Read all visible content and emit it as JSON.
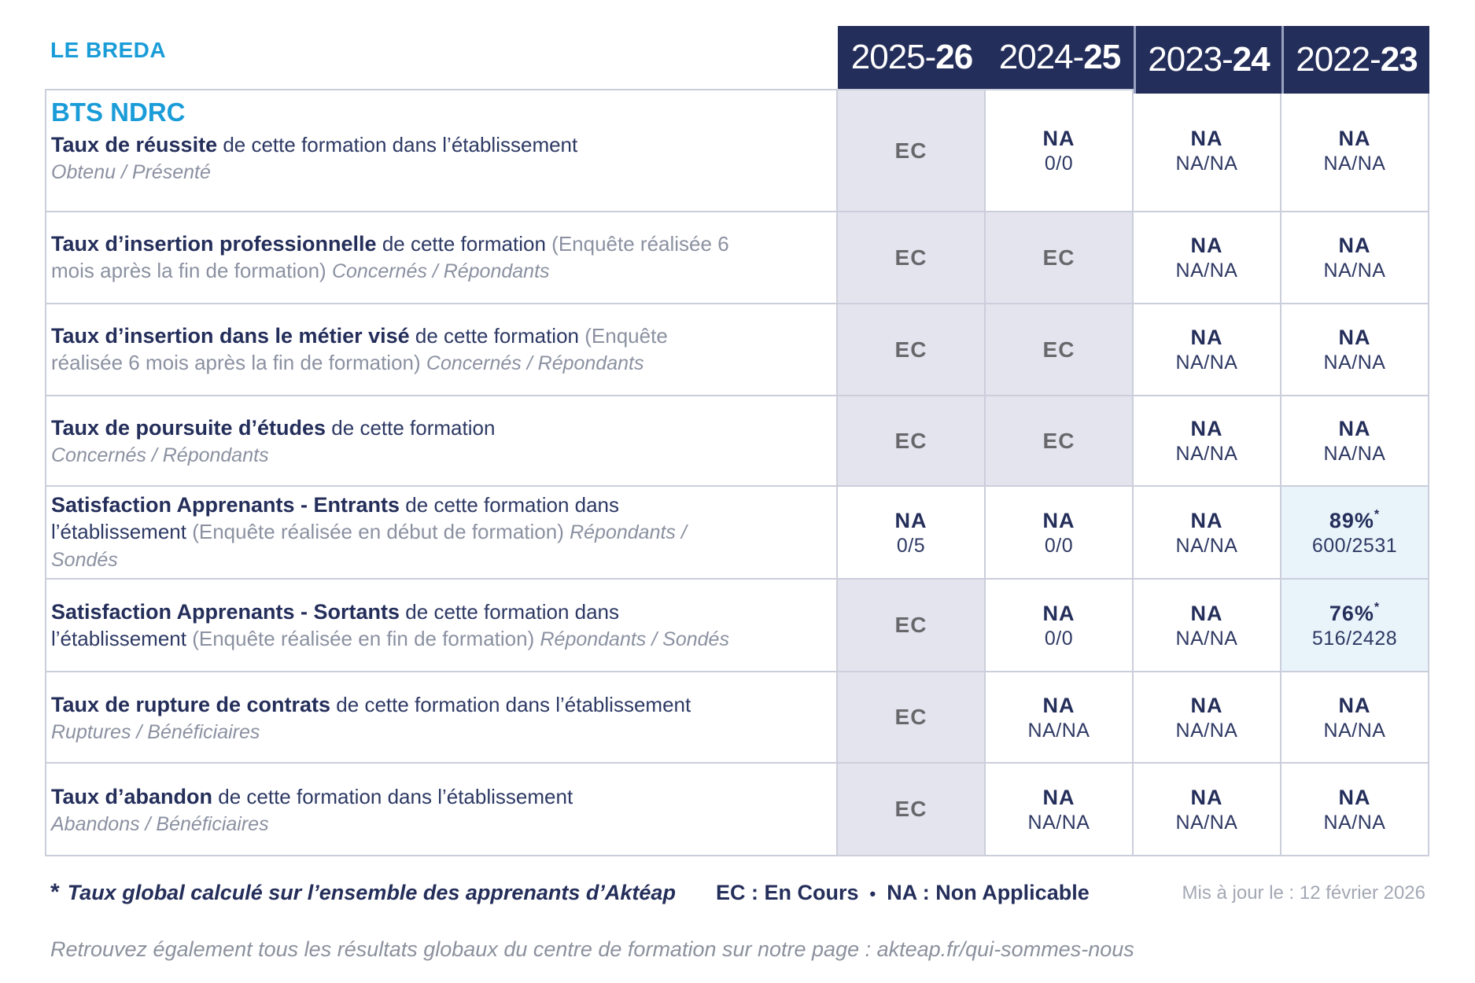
{
  "brand": "LE BREDA",
  "program": "BTS NDRC",
  "columns": [
    {
      "prefix": "2025-",
      "bold": "26"
    },
    {
      "prefix": "2024-",
      "bold": "25"
    },
    {
      "prefix": "2023-",
      "bold": "24"
    },
    {
      "prefix": "2022-",
      "bold": "23"
    }
  ],
  "rows": [
    {
      "bold": "Taux de réussite",
      "rest": "de cette formation dans l’établissement",
      "paren": "",
      "sub": "Obtenu / Présenté",
      "cells": [
        {
          "main": "EC"
        },
        {
          "main": "NA",
          "sub": "0/0"
        },
        {
          "main": "NA",
          "sub": "NA/NA"
        },
        {
          "main": "NA",
          "sub": "NA/NA"
        }
      ]
    },
    {
      "bold": "Taux d’insertion professionnelle",
      "rest": "de cette formation",
      "paren": "(Enquête réalisée 6 mois après la fin de formation)",
      "sub": "Concernés / Répondants",
      "cells": [
        {
          "main": "EC"
        },
        {
          "main": "EC"
        },
        {
          "main": "NA",
          "sub": "NA/NA"
        },
        {
          "main": "NA",
          "sub": "NA/NA"
        }
      ]
    },
    {
      "bold": "Taux d’insertion dans le métier visé",
      "rest": "de cette formation",
      "paren": "(Enquête réalisée 6 mois après la fin de formation)",
      "sub": "Concernés / Répondants",
      "cells": [
        {
          "main": "EC"
        },
        {
          "main": "EC"
        },
        {
          "main": "NA",
          "sub": "NA/NA"
        },
        {
          "main": "NA",
          "sub": "NA/NA"
        }
      ]
    },
    {
      "bold": "Taux de poursuite d’études",
      "rest": "de cette formation",
      "paren": "",
      "sub": "Concernés / Répondants",
      "cells": [
        {
          "main": "EC"
        },
        {
          "main": "EC"
        },
        {
          "main": "NA",
          "sub": "NA/NA"
        },
        {
          "main": "NA",
          "sub": "NA/NA"
        }
      ]
    },
    {
      "bold": "Satisfaction Apprenants - Entrants",
      "rest": "de cette formation dans l’établissement",
      "paren": "(Enquête réalisée en début de formation)",
      "sub": "Répondants / Sondés",
      "cells": [
        {
          "main": "NA",
          "sub": "0/5"
        },
        {
          "main": "NA",
          "sub": "0/0"
        },
        {
          "main": "NA",
          "sub": "NA/NA"
        },
        {
          "main": "89%",
          "star": "*",
          "sub": "600/2531"
        }
      ]
    },
    {
      "bold": "Satisfaction Apprenants - Sortants",
      "rest": "de cette formation dans l’établissement",
      "paren": "(Enquête réalisée en fin de formation)",
      "sub": "Répondants / Sondés",
      "cells": [
        {
          "main": "EC"
        },
        {
          "main": "NA",
          "sub": "0/0"
        },
        {
          "main": "NA",
          "sub": "NA/NA"
        },
        {
          "main": "76%",
          "star": "*",
          "sub": "516/2428"
        }
      ]
    },
    {
      "bold": "Taux de rupture de contrats",
      "rest": "de cette formation dans l’établissement",
      "paren": "",
      "sub": "Ruptures / Bénéficiaires",
      "cells": [
        {
          "main": "EC"
        },
        {
          "main": "NA",
          "sub": "NA/NA"
        },
        {
          "main": "NA",
          "sub": "NA/NA"
        },
        {
          "main": "NA",
          "sub": "NA/NA"
        }
      ]
    },
    {
      "bold": "Taux d’abandon",
      "rest": "de cette formation dans l’établissement",
      "paren": "",
      "sub": "Abandons / Bénéficiaires",
      "cells": [
        {
          "main": "EC"
        },
        {
          "main": "NA",
          "sub": "NA/NA"
        },
        {
          "main": "NA",
          "sub": "NA/NA"
        },
        {
          "main": "NA",
          "sub": "NA/NA"
        }
      ]
    }
  ],
  "footer": {
    "star": "*",
    "footnote": "Taux global calculé sur l’ensemble des apprenants d’Aktéap",
    "legend_ec": "EC : En Cours",
    "legend_sep": "•",
    "legend_na": "NA : Non Applicable",
    "updated": "Mis à jour le : 12 février 2026"
  },
  "bottom_note": "Retrouvez également tous les résultats globaux du centre de formation sur notre page : akteap.fr/qui-sommes-nous",
  "colors": {
    "navy": "#242e5a",
    "light_blue": "#1a9cd8",
    "lavender_cell": "#e4e4ee",
    "blue_cell": "#e9f3fa",
    "grid_line": "#cbcedb"
  },
  "chart_data": {
    "type": "table",
    "title": "BTS NDRC — LE BREDA",
    "columns": [
      "2025-26",
      "2024-25",
      "2023-24",
      "2022-23"
    ],
    "rows": [
      {
        "metric": "Taux de réussite (Obtenu / Présenté)",
        "values": [
          "EC",
          "NA 0/0",
          "NA NA/NA",
          "NA NA/NA"
        ]
      },
      {
        "metric": "Taux d’insertion professionnelle (Concernés / Répondants)",
        "values": [
          "EC",
          "EC",
          "NA NA/NA",
          "NA NA/NA"
        ]
      },
      {
        "metric": "Taux d’insertion dans le métier visé (Concernés / Répondants)",
        "values": [
          "EC",
          "EC",
          "NA NA/NA",
          "NA NA/NA"
        ]
      },
      {
        "metric": "Taux de poursuite d’études (Concernés / Répondants)",
        "values": [
          "EC",
          "EC",
          "NA NA/NA",
          "NA NA/NA"
        ]
      },
      {
        "metric": "Satisfaction Apprenants - Entrants (Répondants / Sondés)",
        "values": [
          "NA 0/5",
          "NA 0/0",
          "NA NA/NA",
          "89%* 600/2531"
        ]
      },
      {
        "metric": "Satisfaction Apprenants - Sortants (Répondants / Sondés)",
        "values": [
          "EC",
          "NA 0/0",
          "NA NA/NA",
          "76%* 516/2428"
        ]
      },
      {
        "metric": "Taux de rupture de contrats (Ruptures / Bénéficiaires)",
        "values": [
          "EC",
          "NA NA/NA",
          "NA NA/NA",
          "NA NA/NA"
        ]
      },
      {
        "metric": "Taux d’abandon (Abandons / Bénéficiaires)",
        "values": [
          "EC",
          "NA NA/NA",
          "NA NA/NA",
          "NA NA/NA"
        ]
      }
    ]
  }
}
